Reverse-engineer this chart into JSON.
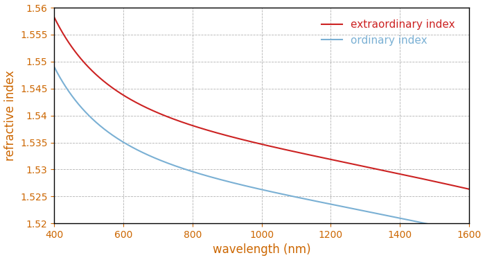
{
  "title": "",
  "xlabel": "wavelength (nm)",
  "ylabel": "refractive index",
  "xlim": [
    400,
    1600
  ],
  "ylim": [
    1.52,
    1.56
  ],
  "yticks": [
    1.52,
    1.525,
    1.53,
    1.535,
    1.54,
    1.545,
    1.55,
    1.555,
    1.56
  ],
  "xticks": [
    400,
    600,
    800,
    1000,
    1200,
    1400,
    1600
  ],
  "extraordinary_color": "#cc2222",
  "ordinary_color": "#7ab0d4",
  "legend_extraordinary": "extraordinary index",
  "legend_ordinary": "ordinary index",
  "background_color": "#ffffff",
  "grid_color": "#aaaaaa",
  "axis_label_color": "#cc6600",
  "tick_label_color": "#cc6600",
  "legend_text_color_extraordinary": "#cc2222",
  "legend_text_color_ordinary": "#7ab0d4",
  "linewidth": 1.5,
  "xlabel_fontsize": 12,
  "ylabel_fontsize": 12,
  "tick_fontsize": 10,
  "legend_fontsize": 11
}
